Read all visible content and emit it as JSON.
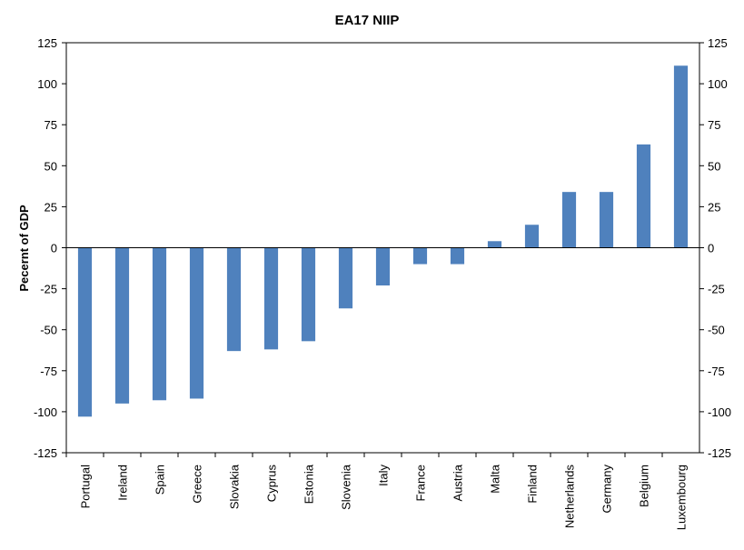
{
  "chart_data": {
    "type": "bar",
    "title": "EA17 NIIP",
    "xlabel": "",
    "ylabel": "Pecernt of GDP",
    "ylim": [
      -125,
      125
    ],
    "yticks": [
      "125",
      "100",
      "75",
      "50",
      "25",
      "0",
      "-25",
      "-50",
      "-75",
      "-100",
      "-125"
    ],
    "grid": false,
    "legend": "none",
    "secondary_axis": true,
    "bar_color": "#4F81BD",
    "categories": [
      "Portugal",
      "Ireland",
      "Spain",
      "Greece",
      "Slovakia",
      "Cyprus",
      "Estonia",
      "Slovenia",
      "Italy",
      "France",
      "Austria",
      "Malta",
      "Finland",
      "Netherlands",
      "Germany",
      "Belgium",
      "Luxembourg"
    ],
    "values": [
      -103,
      -95,
      -93,
      -92,
      -63,
      -62,
      -57,
      -37,
      -23,
      -10,
      -10,
      4,
      14,
      34,
      34,
      63,
      111
    ]
  }
}
